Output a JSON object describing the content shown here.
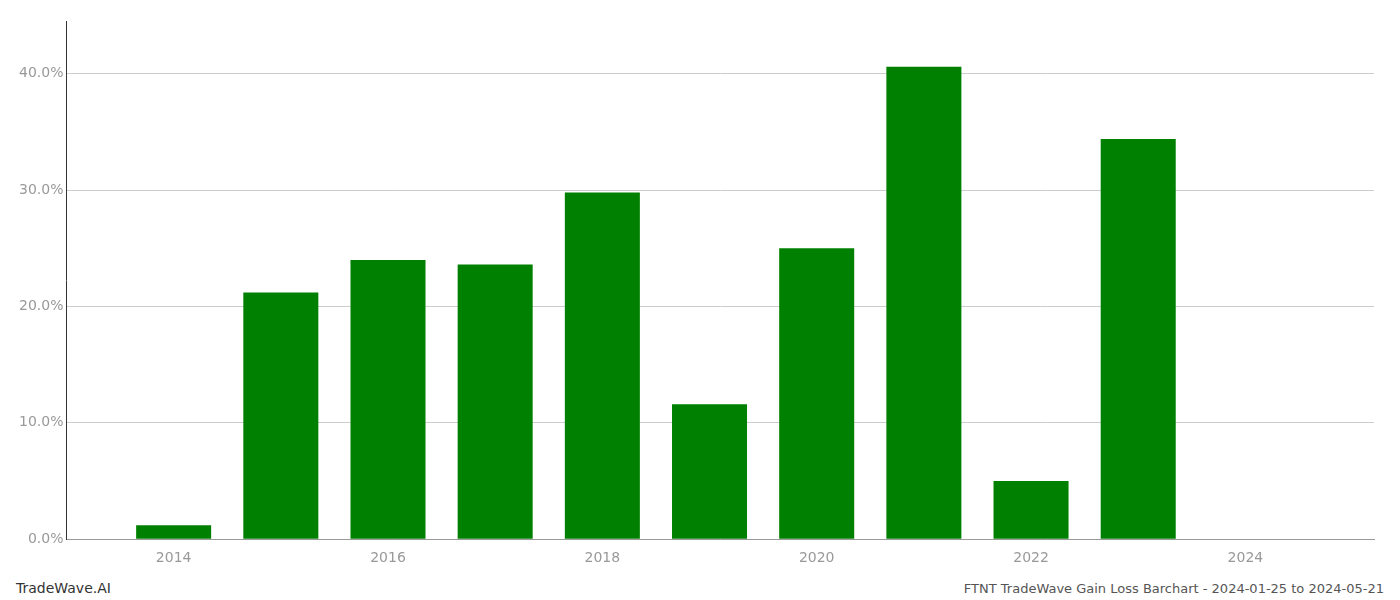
{
  "chart_data": {
    "type": "bar",
    "x": [
      2014,
      2015,
      2016,
      2017,
      2018,
      2019,
      2020,
      2021,
      2022,
      2023
    ],
    "values": [
      0.012,
      0.212,
      0.24,
      0.236,
      0.298,
      0.116,
      0.25,
      0.406,
      0.05,
      0.344
    ],
    "color": "#008000",
    "xlim": [
      2013.0,
      2025.2
    ],
    "xticks": [
      2014,
      2016,
      2018,
      2020,
      2022,
      2024
    ],
    "ylim": [
      0,
      0.445
    ],
    "yticks": [
      {
        "value": 0.0,
        "label": "0.0%"
      },
      {
        "value": 0.1,
        "label": "10.0%"
      },
      {
        "value": 0.2,
        "label": "20.0%"
      },
      {
        "value": 0.3,
        "label": "30.0%"
      },
      {
        "value": 0.4,
        "label": "40.0%"
      }
    ],
    "grid": true,
    "annotations": [
      "TradeWave.AI",
      "FTNT TradeWave Gain Loss Barchart - 2024-01-25 to 2024-05-21"
    ]
  }
}
